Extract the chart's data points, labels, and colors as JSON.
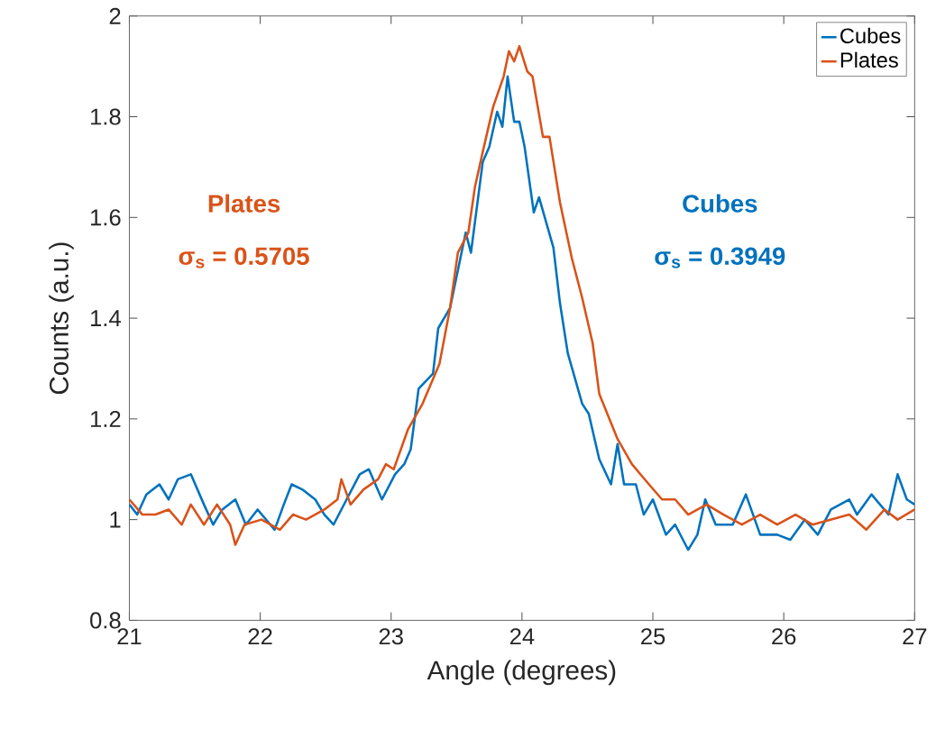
{
  "chart_data": {
    "type": "line",
    "xlabel": "Angle (degrees)",
    "ylabel": "Counts (a.u.)",
    "xlim": [
      21,
      27
    ],
    "ylim": [
      0.8,
      2
    ],
    "xticks": [
      21,
      22,
      23,
      24,
      25,
      26,
      27
    ],
    "yticks": [
      0.8,
      1,
      1.2,
      1.4,
      1.6,
      1.8,
      2
    ],
    "grid": false,
    "legend": "top right",
    "marker": "none",
    "line_style": "solid",
    "annotations": [
      "**Plates**",
      "**σ$_{s}$ = 0.5705**",
      "**Cubes**",
      "**σ$_{s}$ = 0.3949**"
    ],
    "series": [
      {
        "name": "Cubes",
        "color": "#0072bd",
        "x": [
          21.0,
          21.06,
          21.13,
          21.23,
          21.3,
          21.37,
          21.47,
          21.57,
          21.64,
          21.71,
          21.81,
          21.89,
          21.98,
          22.11,
          22.18,
          22.24,
          22.32,
          22.42,
          22.49,
          22.56,
          22.66,
          22.76,
          22.83,
          22.93,
          23.03,
          23.1,
          23.15,
          23.21,
          23.32,
          23.36,
          23.45,
          23.53,
          23.57,
          23.61,
          23.7,
          23.75,
          23.81,
          23.85,
          23.89,
          23.94,
          23.98,
          24.02,
          24.09,
          24.13,
          24.24,
          24.29,
          24.35,
          24.46,
          24.51,
          24.59,
          24.68,
          24.73,
          24.78,
          24.87,
          24.93,
          25.0,
          25.1,
          25.17,
          25.27,
          25.34,
          25.4,
          25.48,
          25.61,
          25.71,
          25.82,
          25.95,
          26.05,
          26.16,
          26.26,
          26.36,
          26.5,
          26.56,
          26.67,
          26.8,
          26.87,
          26.94,
          27.0
        ],
        "values": [
          1.03,
          1.01,
          1.05,
          1.07,
          1.04,
          1.08,
          1.09,
          1.03,
          0.99,
          1.02,
          1.04,
          0.99,
          1.02,
          0.98,
          1.03,
          1.07,
          1.06,
          1.04,
          1.01,
          0.99,
          1.04,
          1.09,
          1.1,
          1.04,
          1.09,
          1.11,
          1.14,
          1.26,
          1.29,
          1.38,
          1.42,
          1.52,
          1.57,
          1.53,
          1.71,
          1.74,
          1.81,
          1.78,
          1.88,
          1.79,
          1.79,
          1.74,
          1.61,
          1.64,
          1.54,
          1.43,
          1.33,
          1.23,
          1.21,
          1.12,
          1.07,
          1.15,
          1.07,
          1.07,
          1.01,
          1.04,
          0.97,
          0.99,
          0.94,
          0.97,
          1.04,
          0.99,
          0.99,
          1.05,
          0.97,
          0.97,
          0.96,
          1.0,
          0.97,
          1.02,
          1.04,
          1.01,
          1.05,
          1.01,
          1.09,
          1.04,
          1.03
        ]
      },
      {
        "name": "Plates",
        "color": "#d95319",
        "x": [
          21.0,
          21.1,
          21.2,
          21.3,
          21.4,
          21.47,
          21.57,
          21.67,
          21.77,
          21.81,
          21.88,
          22.01,
          22.15,
          22.25,
          22.35,
          22.49,
          22.59,
          22.62,
          22.69,
          22.79,
          22.9,
          22.96,
          23.02,
          23.13,
          23.24,
          23.37,
          23.45,
          23.51,
          23.59,
          23.64,
          23.7,
          23.78,
          23.86,
          23.9,
          23.94,
          23.98,
          24.04,
          24.08,
          24.16,
          24.21,
          24.29,
          24.38,
          24.46,
          24.54,
          24.59,
          24.73,
          24.84,
          24.97,
          25.07,
          25.17,
          25.27,
          25.41,
          25.54,
          25.68,
          25.82,
          25.95,
          26.09,
          26.22,
          26.36,
          26.5,
          26.63,
          26.77,
          26.87,
          27.0
        ],
        "values": [
          1.04,
          1.01,
          1.01,
          1.02,
          0.99,
          1.03,
          0.99,
          1.03,
          0.99,
          0.95,
          0.99,
          1.0,
          0.98,
          1.01,
          1.0,
          1.02,
          1.04,
          1.08,
          1.03,
          1.06,
          1.08,
          1.11,
          1.1,
          1.18,
          1.23,
          1.31,
          1.42,
          1.53,
          1.57,
          1.66,
          1.73,
          1.82,
          1.88,
          1.93,
          1.91,
          1.94,
          1.89,
          1.88,
          1.76,
          1.76,
          1.63,
          1.52,
          1.44,
          1.35,
          1.25,
          1.16,
          1.11,
          1.07,
          1.04,
          1.04,
          1.01,
          1.03,
          1.01,
          0.99,
          1.01,
          0.99,
          1.01,
          0.99,
          1.0,
          1.01,
          0.98,
          1.02,
          1.0,
          1.02
        ]
      }
    ]
  }
}
